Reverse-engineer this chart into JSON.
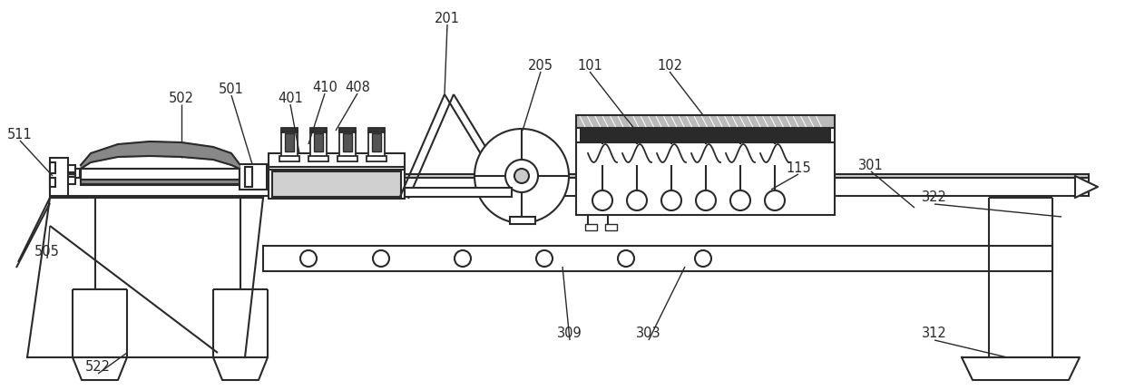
{
  "bg_color": "#ffffff",
  "line_color": "#2a2a2a",
  "figsize": [
    12.4,
    4.31
  ],
  "dpi": 100
}
